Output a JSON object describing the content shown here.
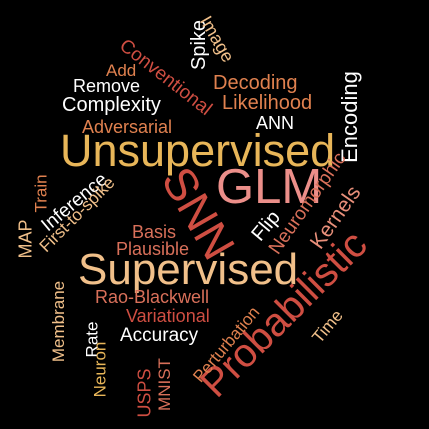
{
  "colors": {
    "background": "#000000",
    "white": "#ffffff",
    "gold": "#e8b659",
    "peach": "#f1c08a",
    "orange": "#e0814f",
    "coral": "#d9705a",
    "salmon": "#e88f7a",
    "red": "#cf4e42",
    "pink": "#ec8f8a"
  },
  "words": [
    {
      "id": "w-supervised",
      "text": "Supervised",
      "color": "peach"
    },
    {
      "id": "w-unsupervised",
      "text": "Unsupervised",
      "color": "gold"
    },
    {
      "id": "w-glm",
      "text": "GLM",
      "color": "pink"
    },
    {
      "id": "w-snn",
      "text": "SNN",
      "color": "red"
    },
    {
      "id": "w-probabilistic",
      "text": "Probabilistic",
      "color": "red"
    },
    {
      "id": "w-encoding",
      "text": "Encoding",
      "color": "white"
    },
    {
      "id": "w-spike",
      "text": "Spike",
      "color": "white"
    },
    {
      "id": "w-image",
      "text": "Image",
      "color": "peach"
    },
    {
      "id": "w-conventional",
      "text": "Conventional",
      "color": "red"
    },
    {
      "id": "w-add",
      "text": "Add",
      "color": "orange"
    },
    {
      "id": "w-remove",
      "text": "Remove",
      "color": "white"
    },
    {
      "id": "w-complexity",
      "text": "Complexity",
      "color": "white"
    },
    {
      "id": "w-decoding",
      "text": "Decoding",
      "color": "orange"
    },
    {
      "id": "w-likelihood",
      "text": "Likelihood",
      "color": "orange"
    },
    {
      "id": "w-adversarial",
      "text": "Adversarial",
      "color": "orange"
    },
    {
      "id": "w-ann",
      "text": "ANN",
      "color": "white"
    },
    {
      "id": "w-neuromorphic",
      "text": "Neuromorphic",
      "color": "coral"
    },
    {
      "id": "w-kernels",
      "text": "Kernels",
      "color": "salmon"
    },
    {
      "id": "w-flip",
      "text": "Flip",
      "color": "white"
    },
    {
      "id": "w-train",
      "text": "Train",
      "color": "orange"
    },
    {
      "id": "w-map",
      "text": "MAP",
      "color": "peach"
    },
    {
      "id": "w-inference",
      "text": "Inference",
      "color": "white"
    },
    {
      "id": "w-first-to-spike",
      "text": "First-to-spike",
      "color": "peach"
    },
    {
      "id": "w-basis",
      "text": "Basis",
      "color": "coral"
    },
    {
      "id": "w-plausible",
      "text": "Plausible",
      "color": "coral"
    },
    {
      "id": "w-membrane",
      "text": "Membrane",
      "color": "peach"
    },
    {
      "id": "w-rate",
      "text": "Rate",
      "color": "white"
    },
    {
      "id": "w-neuron",
      "text": "Neuron",
      "color": "gold"
    },
    {
      "id": "w-rao-blackwell",
      "text": "Rao-Blackwell",
      "color": "coral"
    },
    {
      "id": "w-variational",
      "text": "Variational",
      "color": "red"
    },
    {
      "id": "w-accuracy",
      "text": "Accuracy",
      "color": "white"
    },
    {
      "id": "w-perturbation",
      "text": "Perturbation",
      "color": "orange"
    },
    {
      "id": "w-time",
      "text": "Time",
      "color": "peach"
    },
    {
      "id": "w-usps",
      "text": "USPS",
      "color": "red"
    },
    {
      "id": "w-mnist",
      "text": "MNIST",
      "color": "coral"
    }
  ]
}
